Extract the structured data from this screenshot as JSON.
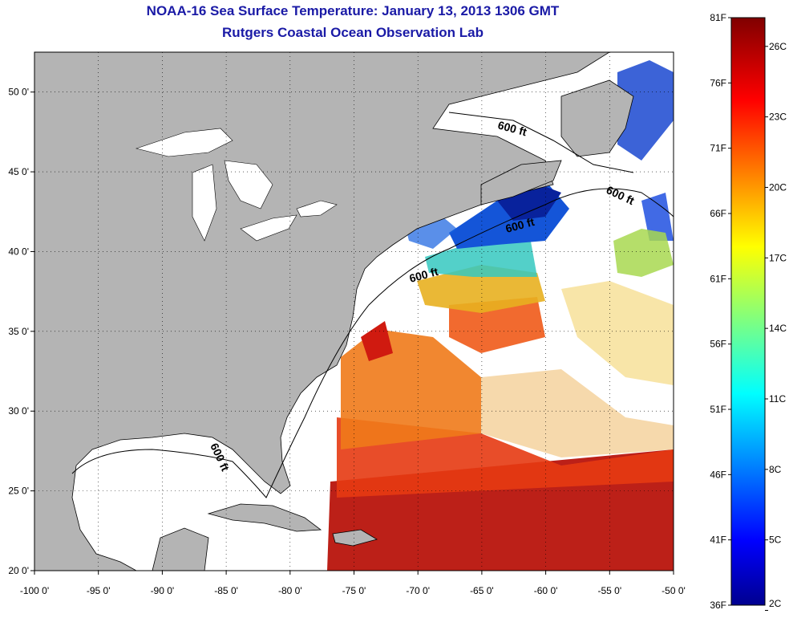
{
  "header": {
    "title": "NOAA-16 Sea Surface Temperature:  January 13, 2013 1306 GMT",
    "subtitle": "Rutgers Coastal Ocean Observation Lab"
  },
  "map": {
    "lon_range": [
      -100,
      -50
    ],
    "lat_range": [
      20,
      52.5
    ],
    "lon_ticks": [
      "-100 0'",
      "-95 0'",
      "-90 0'",
      "-85 0'",
      "-80 0'",
      "-75 0'",
      "-70 0'",
      "-65 0'",
      "-60 0'",
      "-55 0'",
      "-50 0'"
    ],
    "lat_ticks": [
      "20 0'",
      "25 0'",
      "30 0'",
      "35 0'",
      "40 0'",
      "45 0'",
      "50 0'"
    ],
    "lat_values": [
      20,
      25,
      30,
      35,
      40,
      45,
      50
    ],
    "lon_values": [
      -100,
      -95,
      -90,
      -85,
      -80,
      -75,
      -70,
      -65,
      -60,
      -55,
      -50
    ],
    "contour_labels": [
      "600 ft",
      "600 ft",
      "600 ft",
      "600 ft",
      "600 ft"
    ],
    "land_color": "#b4b4b4",
    "no_data_color": "#ffffff"
  },
  "colorbar": {
    "f_labels": [
      "81F",
      "76F",
      "71F",
      "66F",
      "61F",
      "56F",
      "51F",
      "46F",
      "41F",
      "36F"
    ],
    "f_values": [
      81,
      76,
      71,
      66,
      61,
      56,
      51,
      46,
      41,
      36
    ],
    "c_labels": [
      "26C",
      "23C",
      "20C",
      "17C",
      "14C",
      "11C",
      "8C",
      "5C",
      "2C"
    ],
    "c_values": [
      26,
      23,
      20,
      17,
      14,
      11,
      8,
      5,
      2
    ],
    "min_f": 36,
    "max_f": 81,
    "colormap": "jet"
  }
}
